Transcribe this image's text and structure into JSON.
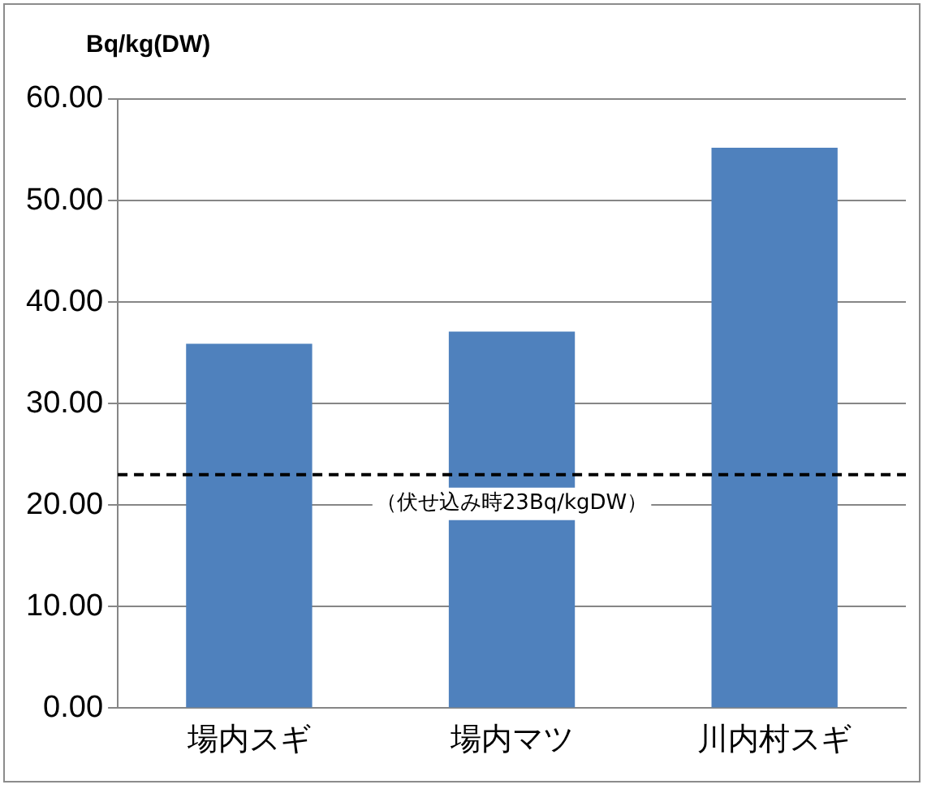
{
  "chart_data": {
    "type": "bar",
    "ylabel": "Bq/kg(DW)",
    "categories": [
      "場内スギ",
      "場内マツ",
      "川内村スギ"
    ],
    "values": [
      35.9,
      37.1,
      55.2
    ],
    "color": "#4f81bd",
    "ylim": [
      0,
      60
    ],
    "yticks": [
      {
        "value": 0,
        "label": "0.00"
      },
      {
        "value": 10,
        "label": "10.00"
      },
      {
        "value": 20,
        "label": "20.00"
      },
      {
        "value": 30,
        "label": "30.00"
      },
      {
        "value": 40,
        "label": "40.00"
      },
      {
        "value": 50,
        "label": "50.00"
      },
      {
        "value": 60,
        "label": "60.00"
      }
    ],
    "grid": "y",
    "legend": false,
    "ref_lines": [
      {
        "axis": "y",
        "value": 23,
        "label": "（伏せ込み時23Bq/kgDW）",
        "color": "#000000",
        "line_style": "dashed"
      }
    ]
  }
}
